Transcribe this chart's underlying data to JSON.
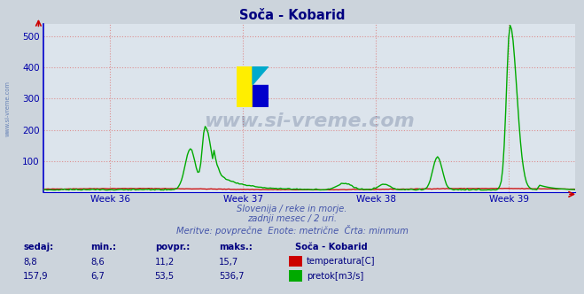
{
  "title": "Soča - Kobarid",
  "background_color": "#ccd4dc",
  "plot_bg_color": "#dce4ec",
  "grid_color": "#dd8888",
  "title_color": "#000080",
  "axis_color": "#0000cc",
  "tick_color": "#0000aa",
  "ylim": [
    0,
    540
  ],
  "yticks": [
    100,
    200,
    300,
    400,
    500
  ],
  "weeks": [
    "Week 36",
    "Week 37",
    "Week 38",
    "Week 39"
  ],
  "subtitle1": "Slovenija / reke in morje.",
  "subtitle2": "zadnji mesec / 2 uri.",
  "subtitle3": "Meritve: povprečne  Enote: metrične  Črta: minmum",
  "subtitle_color": "#4455aa",
  "watermark": "www.si-vreme.com",
  "watermark_color": "#1a3060",
  "watermark_alpha": 0.22,
  "side_text": "www.si-vreme.com",
  "side_color": "#4466aa",
  "temp_color": "#cc0000",
  "flow_color": "#00aa00",
  "arrow_color": "#cc0000",
  "legend_title": "Soča - Kobarid",
  "legend_color": "#000080",
  "table_headers": [
    "sedaj:",
    "min.:",
    "povpr.:",
    "maks.:"
  ],
  "table_color": "#000080",
  "table_value_color": "#000080",
  "temp_values": [
    "8,8",
    "8,6",
    "11,2",
    "15,7"
  ],
  "flow_values": [
    "157,9",
    "6,7",
    "53,5",
    "536,7"
  ],
  "temp_label": "temperatura[C]",
  "flow_label": "pretok[m3/s]"
}
